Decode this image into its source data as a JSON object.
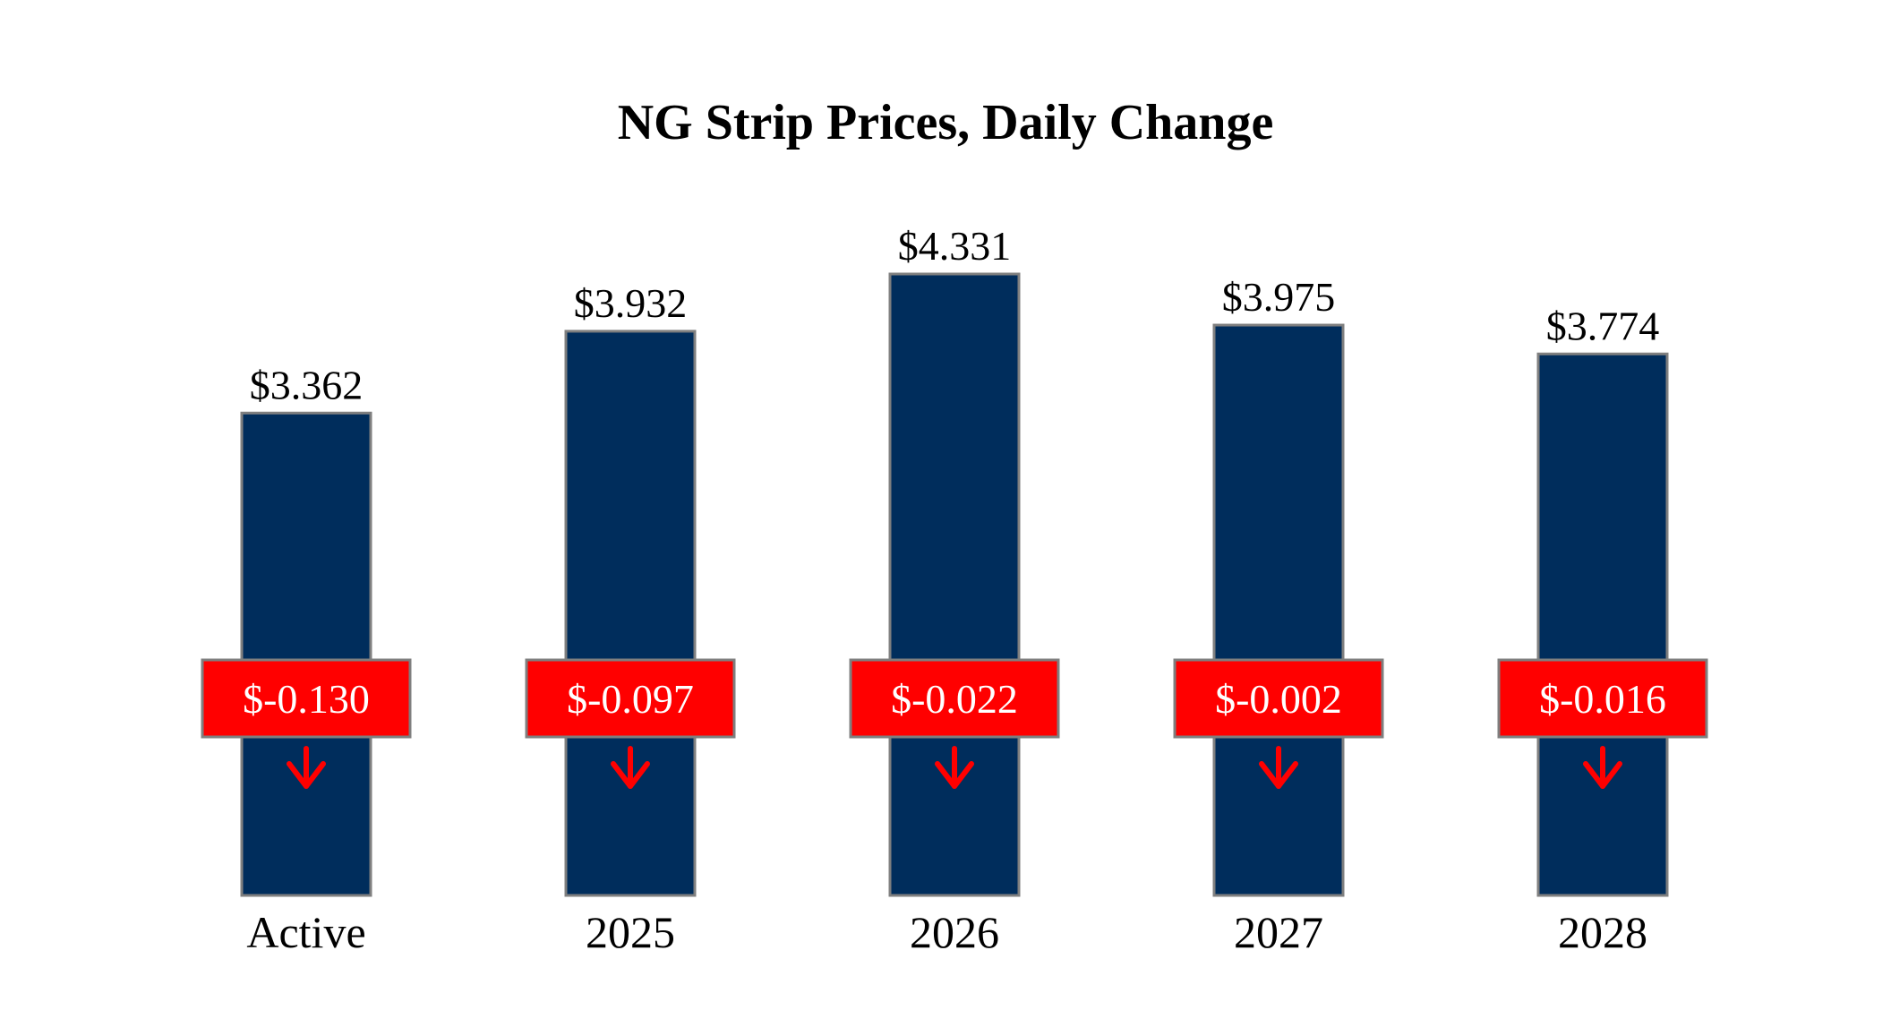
{
  "chart_data": {
    "type": "bar",
    "title": "NG Strip Prices, Daily Change",
    "xlabel": "",
    "ylabel": "",
    "categories": [
      "Active",
      "2025",
      "2026",
      "2027",
      "2028"
    ],
    "values": [
      3.362,
      3.932,
      4.331,
      3.975,
      3.774
    ],
    "value_labels": [
      "$3.362",
      "$3.932",
      "$4.331",
      "$3.975",
      "$3.774"
    ],
    "changes": [
      -0.13,
      -0.097,
      -0.022,
      -0.002,
      -0.016
    ],
    "change_labels": [
      "$-0.130",
      "$-0.097",
      "$-0.022",
      "$-0.002",
      "$-0.016"
    ],
    "change_direction": [
      "down",
      "down",
      "down",
      "down",
      "down"
    ],
    "ylim": [
      0,
      4.331
    ],
    "grid": false,
    "legend": "none",
    "colors": {
      "bar_fill": "#002D5C",
      "bar_stroke": "#7F7F7F",
      "change_box_fill": "#FF0000",
      "change_box_stroke": "#7F7F7F",
      "change_text": "#FFFFFF",
      "arrow": "#FF0000",
      "text": "#000000",
      "background": "#FFFFFF"
    },
    "arrow_icon": "down-arrow-icon"
  }
}
